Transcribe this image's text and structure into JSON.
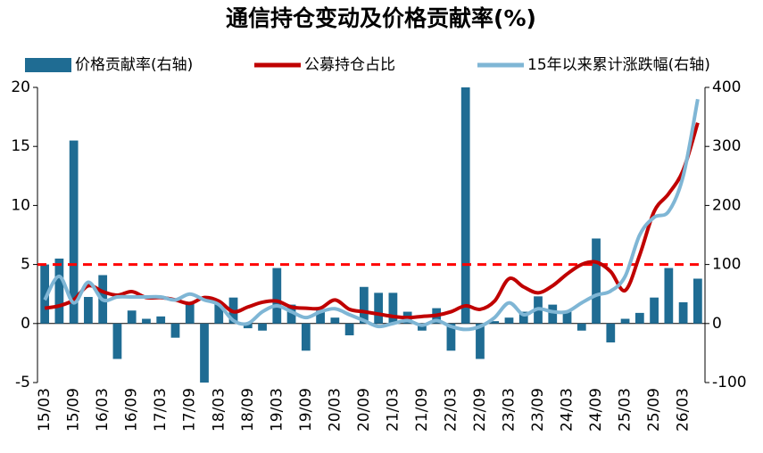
{
  "chart_data": {
    "type": "bar-line",
    "title": "通信持仓变动及价格贡献率(%)",
    "categories": [
      "15/03",
      null,
      "15/09",
      null,
      "16/03",
      null,
      "16/09",
      null,
      "17/03",
      null,
      "17/09",
      null,
      "18/03",
      null,
      "18/09",
      null,
      "19/03",
      null,
      "19/09",
      null,
      "20/03",
      null,
      "20/09",
      null,
      "21/03",
      null,
      "21/09",
      null,
      "22/03",
      null,
      "22/09",
      null,
      "23/03",
      null,
      "23/09",
      null,
      "24/03",
      null,
      "24/09",
      null,
      "25/03",
      null,
      "25/09",
      null,
      "26/03",
      null
    ],
    "series": [
      {
        "name": "价格贡献率(右轴)",
        "type": "bar",
        "axis": "y2",
        "color": "#1f6c93",
        "values": [
          100,
          110,
          310,
          45,
          82,
          -60,
          22,
          8,
          12,
          -24,
          36,
          -100,
          34,
          44,
          -8,
          -12,
          94,
          32,
          -46,
          22,
          10,
          -20,
          62,
          52,
          52,
          20,
          -12,
          26,
          -46,
          400,
          -60,
          4,
          10,
          20,
          46,
          32,
          20,
          -12,
          144,
          -32,
          8,
          18,
          44,
          94,
          36,
          76
        ]
      },
      {
        "name": "公募持仓占比",
        "type": "line",
        "axis": "y",
        "color": "#c00000",
        "values": [
          1.3,
          1.5,
          2,
          3.2,
          2.7,
          2.4,
          2.7,
          2.2,
          2.2,
          2,
          1.7,
          2.2,
          1.9,
          1,
          1.4,
          1.8,
          1.9,
          1.4,
          1.3,
          1.3,
          2,
          1.2,
          1,
          0.8,
          0.6,
          0.5,
          0.6,
          0.7,
          1,
          1.5,
          1.2,
          1.9,
          3.8,
          3.1,
          2.6,
          3.2,
          4.2,
          5,
          5.2,
          4.4,
          2.8,
          5.8,
          9.5,
          11,
          13,
          17
        ]
      },
      {
        "name": "15年以来累计涨跌幅(右轴)",
        "type": "line",
        "axis": "y2",
        "color": "#7fb6d5",
        "values": [
          40,
          80,
          35,
          70,
          40,
          45,
          45,
          45,
          45,
          40,
          50,
          40,
          32,
          5,
          0,
          20,
          30,
          20,
          10,
          20,
          25,
          15,
          5,
          -5,
          0,
          5,
          -3,
          5,
          -5,
          -10,
          -5,
          10,
          35,
          15,
          25,
          20,
          20,
          35,
          48,
          55,
          80,
          150,
          180,
          190,
          250,
          380
        ]
      }
    ],
    "reference_line": {
      "value": 5,
      "color": "#ff0000"
    },
    "ylim": [
      -5,
      20
    ],
    "yticks": [
      -5,
      0,
      5,
      10,
      15,
      20
    ],
    "y2lim": [
      -100,
      400
    ],
    "y2ticks": [
      -100,
      0,
      100,
      200,
      300,
      400
    ]
  }
}
